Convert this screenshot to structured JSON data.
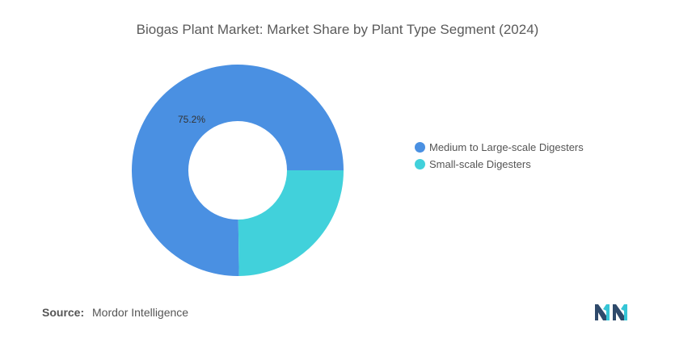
{
  "title": "Biogas Plant Market: Market Share by Plant Type Segment (2024)",
  "chart_data": {
    "type": "pie",
    "title": "Biogas Plant Market: Market Share by Plant Type Segment (2024)",
    "style": "donut",
    "labels": [
      "Medium to Large-scale Digesters",
      "Small-scale Digesters"
    ],
    "values": [
      75.2,
      24.8
    ],
    "data_labels": [
      "75.2%",
      ""
    ],
    "colors": [
      "#4a90e2",
      "#41d1db"
    ],
    "legend_position": "right"
  },
  "legend": {
    "items": [
      {
        "label": "Medium to Large-scale Digesters",
        "color": "#4a90e2"
      },
      {
        "label": "Small-scale Digesters",
        "color": "#41d1db"
      }
    ]
  },
  "source": {
    "label": "Source:",
    "text": "Mordor Intelligence"
  },
  "logo": {
    "icon": "mordor-intelligence-logo-icon",
    "colors": [
      "#2f4a6b",
      "#36c5d6"
    ]
  }
}
